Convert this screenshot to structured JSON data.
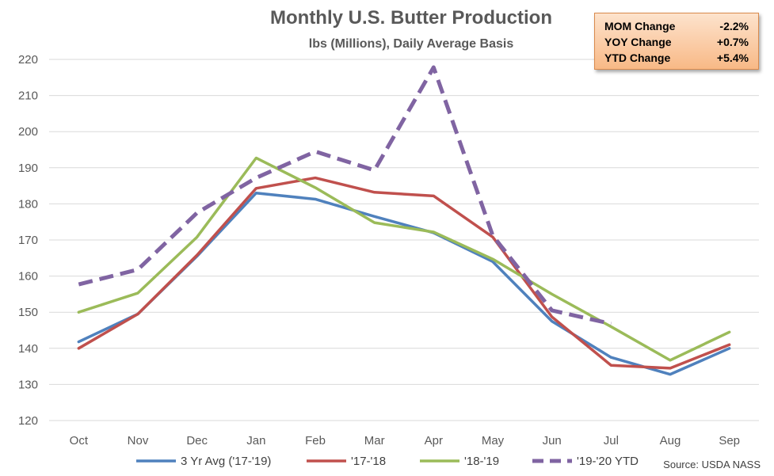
{
  "chart_data": {
    "type": "line",
    "title": "Monthly U.S. Butter Production",
    "subtitle": "lbs (Millions), Daily Average Basis",
    "categories": [
      "Oct",
      "Nov",
      "Dec",
      "Jan",
      "Feb",
      "Mar",
      "Apr",
      "May",
      "Jun",
      "Jul",
      "Aug",
      "Sep"
    ],
    "ylim": [
      120,
      220
    ],
    "yticks": [
      120,
      130,
      140,
      150,
      160,
      170,
      180,
      190,
      200,
      210,
      220
    ],
    "grid": true,
    "legend": "bottom",
    "series": [
      {
        "name": "3 Yr Avg ('17-'19)",
        "color": "#4f81bd",
        "dashed": false,
        "values": [
          141.8,
          149.5,
          165.5,
          183.0,
          181.3,
          176.5,
          172.0,
          164.0,
          147.5,
          137.5,
          132.8,
          140.0
        ]
      },
      {
        "name": "'17-'18",
        "color": "#c0504d",
        "dashed": false,
        "values": [
          140.0,
          149.5,
          165.8,
          184.3,
          187.2,
          183.2,
          182.2,
          170.8,
          148.7,
          135.3,
          134.5,
          141.0
        ]
      },
      {
        "name": "'18-'19",
        "color": "#9bbb59",
        "dashed": false,
        "values": [
          150.0,
          155.3,
          170.8,
          192.7,
          184.5,
          174.8,
          172.2,
          164.7,
          155.0,
          146.0,
          136.7,
          144.5
        ]
      },
      {
        "name": "'19-'20 YTD",
        "color": "#8064a2",
        "dashed": true,
        "values": [
          157.7,
          161.8,
          177.5,
          187.2,
          194.5,
          189.3,
          217.8,
          171.2,
          150.5,
          146.8,
          null,
          null
        ]
      }
    ],
    "source": "Source: USDA NASS"
  },
  "stats": [
    {
      "label": "MOM Change",
      "value": "-2.2%"
    },
    {
      "label": "YOY Change",
      "value": "+0.7%"
    },
    {
      "label": "YTD Change",
      "value": "+5.4%"
    }
  ]
}
